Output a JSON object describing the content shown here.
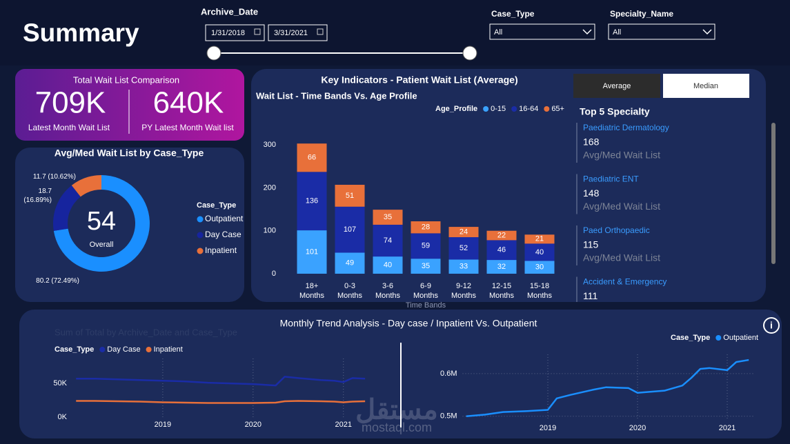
{
  "header": {
    "title": "Summary"
  },
  "filters": {
    "archive_date": {
      "label": "Archive_Date",
      "from": "1/31/2018",
      "to": "3/31/2021"
    },
    "case_type": {
      "label": "Case_Type",
      "value": "All"
    },
    "specialty_name": {
      "label": "Specialty_Name",
      "value": "All"
    }
  },
  "kpi": {
    "title": "Total Wait List Comparison",
    "items": [
      {
        "value": "709K",
        "label": "Latest Month Wait List"
      },
      {
        "value": "640K",
        "label": "PY Latest Month Wait list"
      }
    ]
  },
  "key_indicators": {
    "title": "Key Indicators - Patient Wait List (Average)",
    "buttons": [
      "Average",
      "Median"
    ]
  },
  "top_specialty": {
    "title": "Top 5 Specialty",
    "items": [
      {
        "name": "Paediatric Dermatology",
        "value": 168,
        "label": "Avg/Med Wait List"
      },
      {
        "name": "Paediatric ENT",
        "value": 148,
        "label": "Avg/Med Wait List"
      },
      {
        "name": "Paed Orthopaedic",
        "value": 115,
        "label": "Avg/Med Wait List"
      },
      {
        "name": "Accident & Emergency",
        "value": 111
      }
    ]
  },
  "trend": {
    "title": "Monthly Trend Analysis - Day case / Inpatient Vs. Outpatient"
  },
  "watermark": {
    "arabic": "مستقل",
    "latin": "mostaql.com"
  },
  "chart_data": [
    {
      "type": "pie",
      "title": "Avg/Med Wait List by Case_Type",
      "center_value": 54,
      "center_label": "Overall",
      "legend_title": "Case_Type",
      "categories": [
        "Outpatient",
        "Day Case",
        "Inpatient"
      ],
      "values": [
        80.2,
        18.7,
        11.7
      ],
      "value_labels": [
        "80.2 (72.49%)",
        "18.7 (16.89%)",
        "11.7 (10.62%)"
      ],
      "colors": [
        "#1a8fff",
        "#16249e",
        "#e8703a"
      ]
    },
    {
      "type": "bar",
      "stacked": true,
      "title": "Wait List - Time Bands Vs. Age Profile",
      "x_label": "Time Bands",
      "legend_title": "Age_Profile",
      "categories": [
        "18+ Months",
        "0-3 Months",
        "3-6 Months",
        "6-9 Months",
        "9-12 Months",
        "12-15 Months",
        "15-18 Months"
      ],
      "series": [
        {
          "name": "0-15",
          "color": "#3aa2ff",
          "values": [
            101,
            49,
            40,
            35,
            33,
            32,
            30
          ]
        },
        {
          "name": "16-64",
          "color": "#1a2ca6",
          "values": [
            136,
            107,
            74,
            59,
            52,
            46,
            40
          ]
        },
        {
          "name": "65+",
          "color": "#e8703a",
          "values": [
            66,
            51,
            35,
            28,
            24,
            22,
            21
          ]
        }
      ],
      "ylim": [
        0,
        320
      ],
      "yticks": [
        0,
        100,
        200,
        300
      ]
    },
    {
      "type": "line",
      "subtitle": "Sum of Total by Archive_Date and Case_Type",
      "legend_title": "Case_Type",
      "x": [
        2018.04,
        2018.25,
        2018.5,
        2018.75,
        2019.0,
        2019.25,
        2019.5,
        2019.75,
        2020.0,
        2020.25,
        2020.35,
        2020.5,
        2020.75,
        2020.9,
        2021.0,
        2021.1,
        2021.24
      ],
      "series": [
        {
          "name": "Day Case",
          "color": "#1a2ca6",
          "values": [
            57000,
            57000,
            56000,
            55000,
            54000,
            53000,
            51000,
            50000,
            49000,
            47000,
            60000,
            58000,
            55000,
            54000,
            52000,
            58000,
            57000
          ]
        },
        {
          "name": "Inpatient",
          "color": "#e8703a",
          "values": [
            24000,
            24000,
            23500,
            23000,
            22000,
            21500,
            21000,
            21000,
            21000,
            21500,
            23500,
            24000,
            23500,
            23000,
            22000,
            23000,
            23500
          ]
        }
      ],
      "xlim": [
        2018,
        2021.3
      ],
      "xticks": [
        2019,
        2020,
        2021
      ],
      "ylim": [
        0,
        87000
      ],
      "yticks": [
        {
          "value": 0,
          "label": "0K"
        },
        {
          "value": 50000,
          "label": "50K"
        }
      ],
      "grid": "x"
    },
    {
      "type": "line",
      "legend_title": "Case_Type",
      "x": [
        2018.09,
        2018.3,
        2018.5,
        2018.75,
        2019.0,
        2019.1,
        2019.25,
        2019.5,
        2019.65,
        2019.9,
        2020.0,
        2020.3,
        2020.5,
        2020.6,
        2020.7,
        2020.8,
        2021.0,
        2021.1,
        2021.24
      ],
      "series": [
        {
          "name": "Outpatient",
          "color": "#1a8fff",
          "values": [
            500000,
            504000,
            510000,
            512000,
            515000,
            542000,
            550000,
            562000,
            568000,
            566000,
            555000,
            560000,
            572000,
            590000,
            611000,
            613000,
            608000,
            627000,
            632000
          ]
        }
      ],
      "xlim": [
        2018.05,
        2021.3
      ],
      "xticks": [
        2019,
        2020,
        2021
      ],
      "ylim": [
        490000,
        645000
      ],
      "yticks": [
        {
          "value": 500000,
          "label": "0.5M"
        },
        {
          "value": 600000,
          "label": "0.6M"
        }
      ],
      "grid": "both"
    }
  ]
}
